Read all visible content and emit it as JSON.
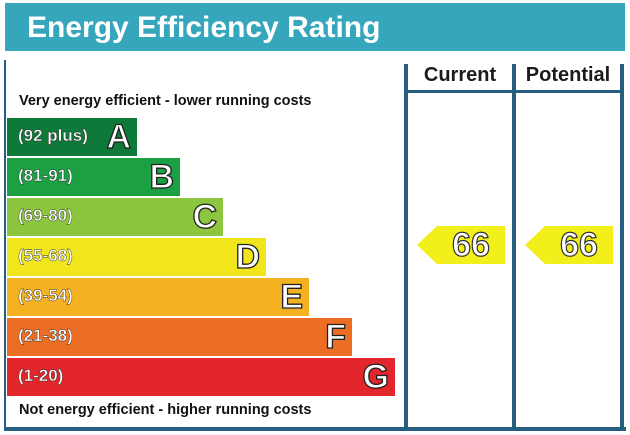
{
  "title": "Energy Efficiency Rating",
  "columns": {
    "current": "Current",
    "potential": "Potential"
  },
  "captions": {
    "top": "Very energy efficient - lower running costs",
    "bottom": "Not energy efficient - higher running costs"
  },
  "colors": {
    "header": "#36a6bd",
    "frame": "#255e80",
    "arrow": "#f2ef1a"
  },
  "chart_data": {
    "type": "bar",
    "title": "Energy Efficiency Rating",
    "bands": [
      {
        "range": "(92 plus)",
        "letter": "A",
        "color": "#0e7a3a"
      },
      {
        "range": "(81-91)",
        "letter": "B",
        "color": "#1ba044"
      },
      {
        "range": "(69-80)",
        "letter": "C",
        "color": "#8cc63f"
      },
      {
        "range": "(55-68)",
        "letter": "D",
        "color": "#f1e51c"
      },
      {
        "range": "(39-54)",
        "letter": "E",
        "color": "#f4b221"
      },
      {
        "range": "(21-38)",
        "letter": "F",
        "color": "#ec6e25"
      },
      {
        "range": "(1-20)",
        "letter": "G",
        "color": "#e3262b"
      }
    ],
    "current": 66,
    "potential": 66
  }
}
